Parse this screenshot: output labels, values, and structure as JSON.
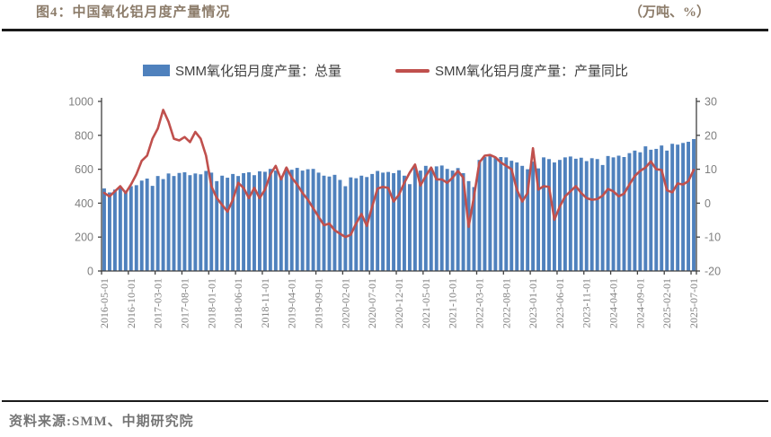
{
  "header": {
    "title": "图4：中国氧化铝月度产量情况",
    "unit_label": "（万吨、%）"
  },
  "legend": [
    {
      "label": "SMM氧化铝月度产量：总量",
      "marker": "bar-swatch",
      "color": "#4f81bd"
    },
    {
      "label": "SMM氧化铝月度产量：产量同比",
      "marker": "line-swatch",
      "color": "#c0504d"
    }
  ],
  "footer": {
    "source": "资料来源:SMM、中期研究院"
  },
  "colors": {
    "bar": "#4f81bd",
    "line": "#c0504d",
    "title_text": "#8c7c6a",
    "axis_text": "#7f7f7f",
    "axis_line": "#404040",
    "rule": "#1a1a1a",
    "source_text": "#757575"
  },
  "chart_data": {
    "type": "bar",
    "subtype": "bar+line-dual-axis",
    "title": "图4：中国氧化铝月度产量情况",
    "units": "万吨、%",
    "start_month": "2016-05",
    "x_tick_labels": [
      "2016-05-01",
      "2016-10-01",
      "2017-03-01",
      "2017-08-01",
      "2018-01-01",
      "2018-06-01",
      "2018-11-01",
      "2019-04-01",
      "2019-09-01",
      "2020-02-01",
      "2020-07-01",
      "2020-12-01",
      "2021-05-01",
      "2021-10-01",
      "2022-03-01",
      "2022-08-01",
      "2023-01-01",
      "2023-06-01",
      "2023-11-01",
      "2024-04-01",
      "2024-09-01",
      "2025-02-01",
      "2025-07-01"
    ],
    "x_tick_every": 5,
    "left_axis": {
      "ticks": [
        0,
        200,
        400,
        600,
        800,
        1000
      ],
      "range": [
        0,
        1000
      ]
    },
    "right_axis": {
      "ticks": [
        30,
        20,
        10,
        0,
        -10,
        -20
      ],
      "range": [
        -20,
        30
      ]
    },
    "grid": false,
    "legend_position": "top",
    "series": [
      {
        "name": "SMM氧化铝月度产量：总量",
        "type": "bar",
        "axis": "left",
        "color": "#4f81bd",
        "values": [
          487,
          463,
          480,
          492,
          473,
          500,
          506,
          533,
          545,
          502,
          560,
          542,
          575,
          560,
          578,
          582,
          565,
          575,
          570,
          590,
          580,
          530,
          562,
          550,
          572,
          560,
          577,
          582,
          565,
          588,
          585,
          602,
          592,
          550,
          607,
          597,
          608,
          592,
          600,
          602,
          580,
          562,
          557,
          567,
          537,
          500,
          552,
          547,
          562,
          554,
          572,
          590,
          580,
          584,
          577,
          594,
          562,
          512,
          612,
          592,
          620,
          607,
          617,
          622,
          602,
          592,
          607,
          577,
          530,
          495,
          655,
          672,
          680,
          668,
          672,
          670,
          650,
          640,
          620,
          600,
          645,
          605,
          670,
          660,
          640,
          655,
          670,
          675,
          662,
          668,
          648,
          665,
          660,
          625,
          678,
          670,
          680,
          672,
          695,
          710,
          700,
          735,
          715,
          720,
          740,
          710,
          750,
          745,
          755,
          762,
          778
        ]
      },
      {
        "name": "SMM氧化铝月度产量：产量同比",
        "type": "line",
        "axis": "right",
        "color": "#c0504d",
        "values": [
          3.0,
          2.0,
          3.5,
          5.0,
          3.0,
          5.5,
          8.5,
          12.5,
          14.0,
          19.0,
          22.0,
          27.5,
          24.0,
          19.0,
          18.5,
          19.5,
          18.0,
          21.0,
          19.0,
          14.0,
          5.0,
          1.5,
          -0.5,
          -2.5,
          1.0,
          6.0,
          4.5,
          1.5,
          4.5,
          1.5,
          4.0,
          8.5,
          11.0,
          7.0,
          10.5,
          7.5,
          5.5,
          3.0,
          1.0,
          -1.5,
          -4.0,
          -6.5,
          -6.0,
          -8.0,
          -9.0,
          -10.0,
          -9.3,
          -6.0,
          -3.2,
          -6.7,
          -1.0,
          4.3,
          4.8,
          4.5,
          0.5,
          2.5,
          6.0,
          9.0,
          11.4,
          5.2,
          8.0,
          10.5,
          7.0,
          7.0,
          6.0,
          7.5,
          9.5,
          7.5,
          -7.0,
          2.0,
          12.0,
          14.0,
          14.2,
          13.5,
          12.0,
          11.0,
          10.0,
          4.0,
          0.5,
          3.0,
          16.2,
          4.0,
          5.0,
          4.8,
          -4.9,
          -1.0,
          2.0,
          3.5,
          5.0,
          3.0,
          1.5,
          1.0,
          1.2,
          2.2,
          4.2,
          3.5,
          2.0,
          2.8,
          5.5,
          8.0,
          9.5,
          10.5,
          12.3,
          10.0,
          9.8,
          3.8,
          3.2,
          5.8,
          5.5,
          6.5,
          9.8
        ]
      }
    ]
  }
}
